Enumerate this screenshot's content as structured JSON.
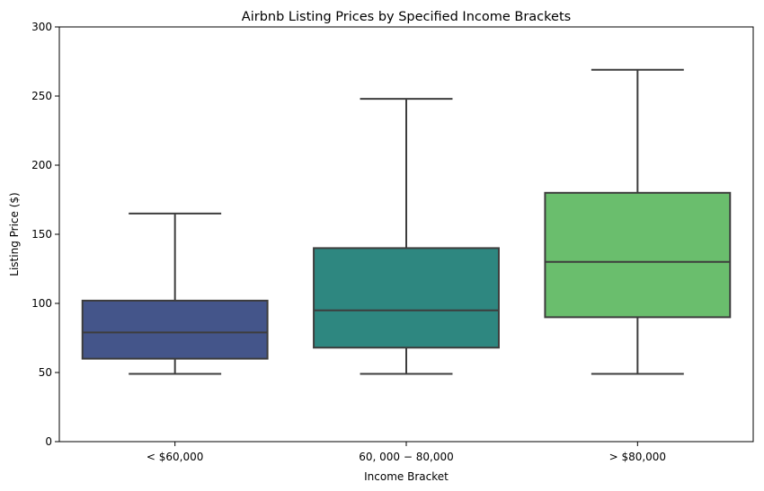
{
  "chart_data": {
    "type": "box",
    "title": "Airbnb Listing Prices by Specified Income Brackets",
    "xlabel": "Income Bracket",
    "ylabel": "Listing Price ($)",
    "ylim": [
      0,
      300
    ],
    "yticks": [
      0,
      50,
      100,
      150,
      200,
      250,
      300
    ],
    "categories": [
      "< $60,000",
      "$60,000 - $80,000",
      "> $80,000"
    ],
    "category_labels": [
      "< $60,000",
      "60, 000 − 80,000",
      "> $80,000"
    ],
    "boxes": [
      {
        "name": "< $60,000",
        "whisker_low": 49,
        "q1": 60,
        "median": 79,
        "q3": 102,
        "whisker_high": 165,
        "color": "#44558a"
      },
      {
        "name": "$60,000 - $80,000",
        "whisker_low": 49,
        "q1": 68,
        "median": 95,
        "q3": 140,
        "whisker_high": 248,
        "color": "#2e8780"
      },
      {
        "name": "> $80,000",
        "whisker_low": 49,
        "q1": 90,
        "median": 130,
        "q3": 180,
        "whisker_high": 269,
        "color": "#6abe6d"
      }
    ],
    "grid": false,
    "legend": "none"
  }
}
